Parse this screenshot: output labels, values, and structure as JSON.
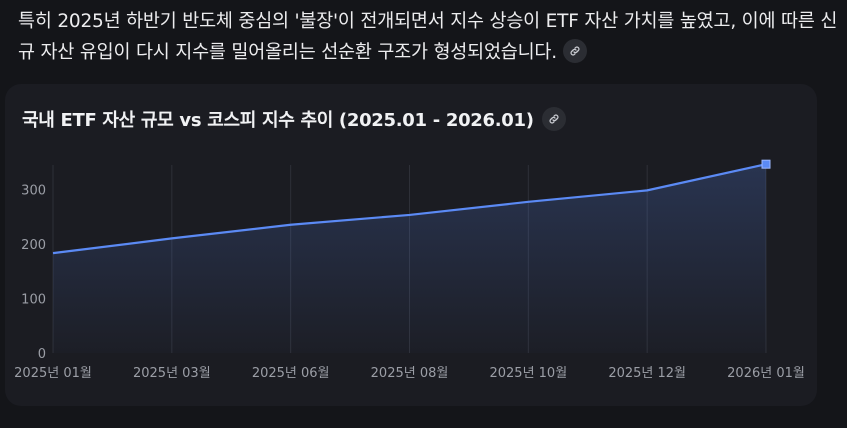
{
  "paragraph": {
    "text": "특히 2025년 하반기 반도체 중심의 '불장'이 전개되면서 지수 상승이 ETF 자산 가치를 높였고, 이에 따른 신규 자산 유입이 다시 지수를 밀어올리는 선순환 구조가 형성되었습니다.",
    "link_icon": "link-icon"
  },
  "card": {
    "title": "국내 ETF 자산 규모 vs 코스피 지수 추이 (2025.01 - 2026.01)",
    "link_icon": "link-icon"
  },
  "colors": {
    "line": "#5b8af5",
    "background": "#141519",
    "card": "#1b1c22",
    "grid": "#2e3038"
  },
  "chart_data": {
    "type": "area",
    "title": "국내 ETF 자산 규모 vs 코스피 지수 추이 (2025.01 - 2026.01)",
    "x": [
      "2025년 01월",
      "2025년 03월",
      "2025년 06월",
      "2025년 08월",
      "2025년 10월",
      "2025년 12월",
      "2026년 01월"
    ],
    "series": [
      {
        "values": [
          183,
          210,
          235,
          253,
          277,
          298,
          346
        ]
      }
    ],
    "ylim": [
      0,
      350
    ],
    "yticks": [
      0,
      100,
      200,
      300
    ],
    "grid": "vertical",
    "last_point_marker": "square"
  }
}
